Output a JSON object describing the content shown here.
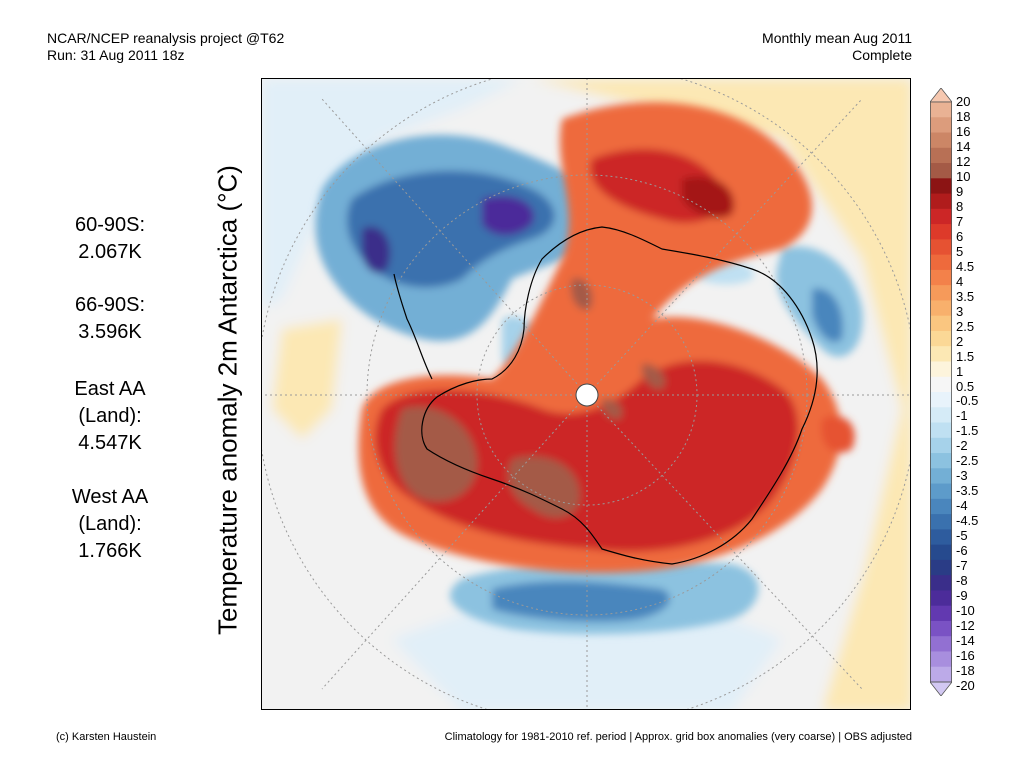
{
  "header": {
    "project": "NCAR/NCEP reanalysis project @T62",
    "run": "Run: 31 Aug 2011 18z",
    "period": "Monthly mean Aug 2011",
    "status": "Complete"
  },
  "stats": [
    {
      "name": "60-90S:",
      "value": "2.067K"
    },
    {
      "name": "66-90S:",
      "value": "3.596K"
    },
    {
      "name": "East AA",
      "sub": "(Land):",
      "value": "4.547K"
    },
    {
      "name": "West AA",
      "sub": "(Land):",
      "value": "1.766K"
    }
  ],
  "ylabel": "Temperature anomaly 2m Antarctica (°C)",
  "colorbar": {
    "labels": [
      "20",
      "18",
      "16",
      "14",
      "12",
      "10",
      "9",
      "8",
      "7",
      "6",
      "5",
      "4.5",
      "4",
      "3.5",
      "3",
      "2.5",
      "2",
      "1.5",
      "1",
      "0.5",
      "-0.5",
      "-1",
      "-1.5",
      "-2",
      "-2.5",
      "-3",
      "-3.5",
      "-4",
      "-4.5",
      "-5",
      "-6",
      "-7",
      "-8",
      "-9",
      "-10",
      "-12",
      "-14",
      "-16",
      "-18",
      "-20"
    ],
    "colors": [
      "#f6c8b0",
      "#e9b294",
      "#dc9c7c",
      "#cc8666",
      "#b87055",
      "#a45a46",
      "#8c1414",
      "#b01c1c",
      "#cc2626",
      "#dd3a2a",
      "#e65232",
      "#ee6a3c",
      "#f3814a",
      "#f69a5a",
      "#f8b06c",
      "#fac680",
      "#fbd896",
      "#fce8b4",
      "#fdf4dc",
      "#f6f6f6",
      "#e8f3fb",
      "#d5ebf7",
      "#bfe0f2",
      "#a6d2ea",
      "#8cc2e0",
      "#73afd5",
      "#5d9bca",
      "#4a86bd",
      "#3a71ae",
      "#2e5c9e",
      "#264a8e",
      "#2a3c86",
      "#3a2e8a",
      "#4c2c9a",
      "#6239b0",
      "#7a52c4",
      "#9270d2",
      "#a88ede",
      "#bcaae8",
      "#d2c8f2"
    ]
  },
  "footer": {
    "left": "(c) Karsten Haustein",
    "right": "Climatology for 1981-2010 ref. period | Approx. grid box anomalies (very coarse) | OBS adjusted"
  }
}
